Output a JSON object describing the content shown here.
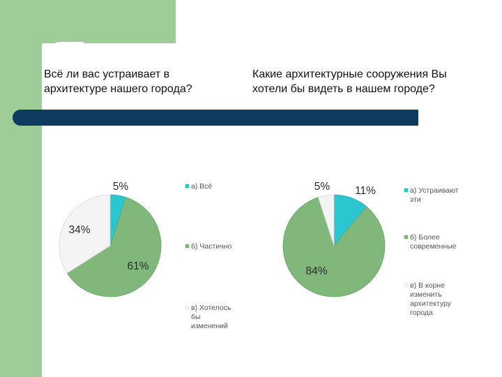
{
  "chart_data": [
    {
      "type": "pie",
      "title": "Всё ли вас устраивает в архитектуре нашего города?",
      "categories": [
        "а) Всё",
        "б) Частично",
        "в) Хотелось бы изменений"
      ],
      "values": [
        5,
        61,
        34
      ],
      "value_labels": [
        "5%",
        "61%",
        "34%"
      ],
      "legend_lines": [
        [
          "а) Всё"
        ],
        [
          "б) Частично"
        ],
        [
          "в) Хотелось",
          "бы",
          "изменений"
        ]
      ],
      "colors": [
        "#2bc6cf",
        "#7fb87a",
        "#f4f4f4"
      ],
      "legend": "right"
    },
    {
      "type": "pie",
      "title": "Какие архитектурные сооружения Вы хотели бы видеть в нашем городе?",
      "categories": [
        "а) Устраивают эти",
        "б) Более современные",
        "в) В корне изменить архитектуру города"
      ],
      "values": [
        11,
        84,
        5
      ],
      "value_labels": [
        "11%",
        "84%",
        "5%"
      ],
      "legend_lines": [
        [
          "а) Устраивают",
          "эти"
        ],
        [
          "б) Более",
          "современные"
        ],
        [
          "в) В корне",
          "изменить",
          "архитектуру",
          "города"
        ]
      ],
      "colors": [
        "#2bc6cf",
        "#7fb87a",
        "#f4f4f4"
      ],
      "legend": "right"
    }
  ]
}
